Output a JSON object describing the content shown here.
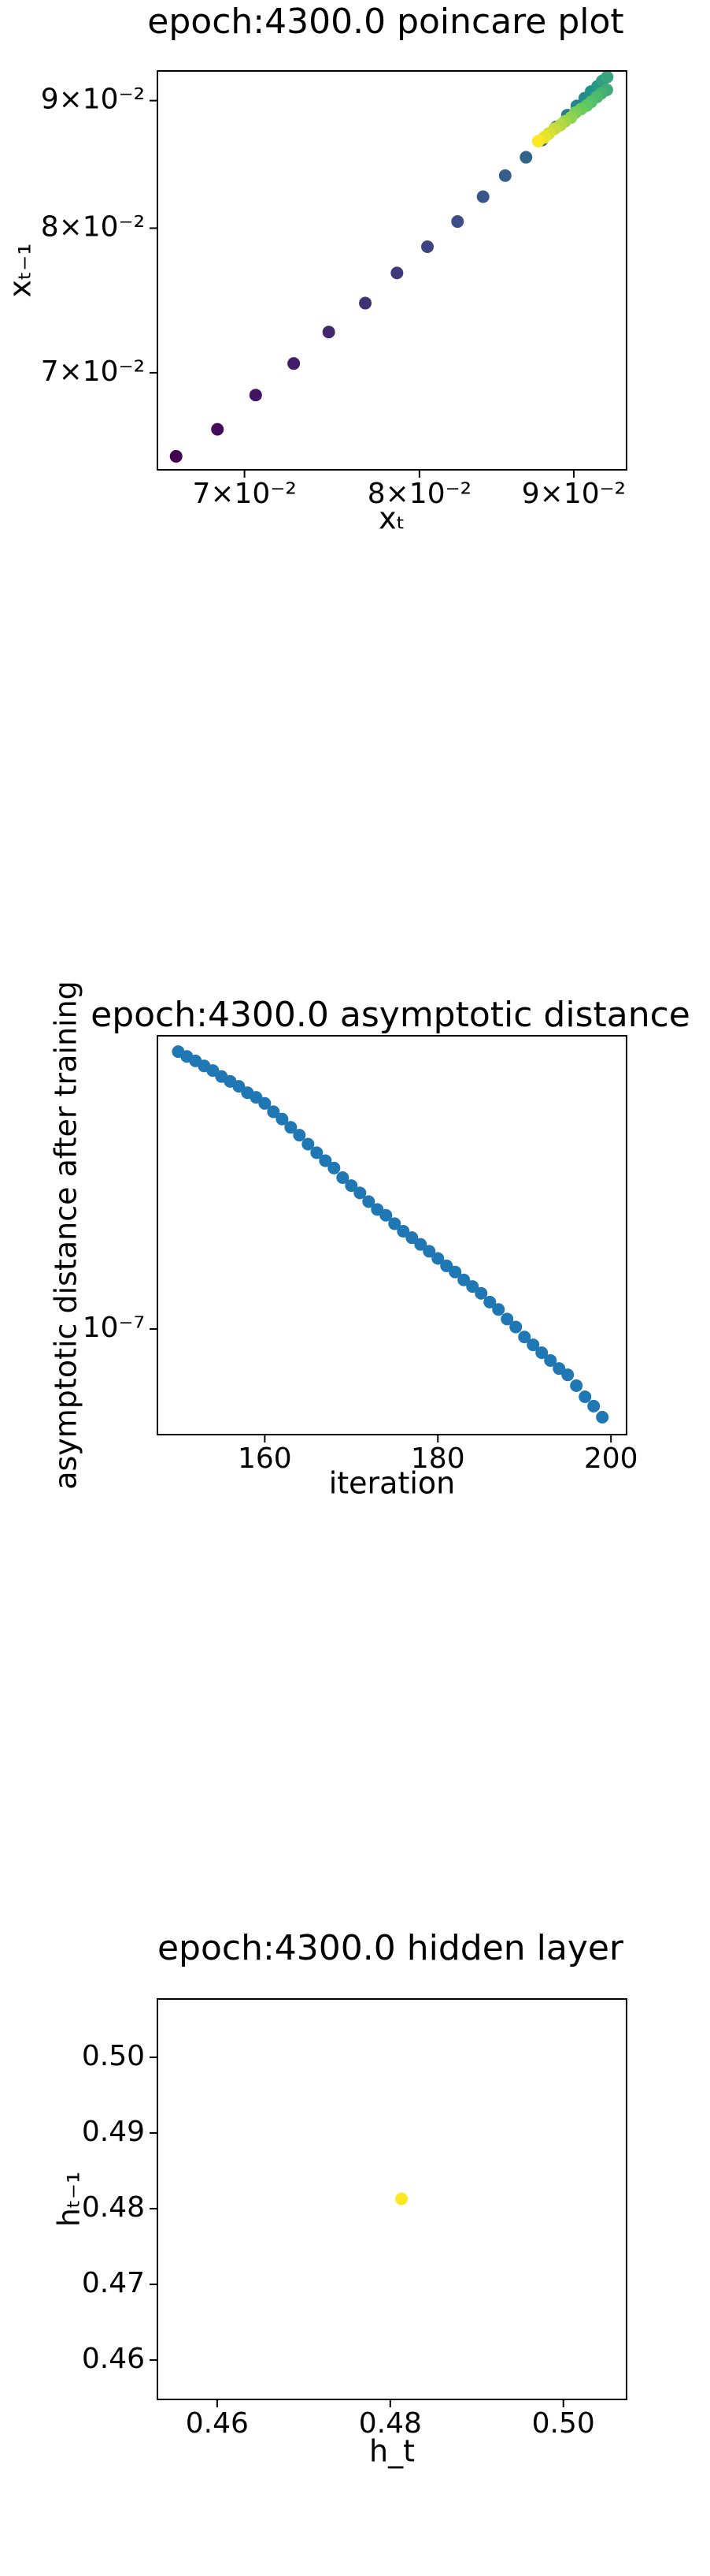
{
  "chart_data": [
    {
      "type": "scatter",
      "title": "epoch:4300.0 poincare plot",
      "x_label": "xₜ",
      "y_label": "xₜ₋₁",
      "xscale": "log",
      "yscale": "log",
      "xlim": [
        0.0655,
        0.0937
      ],
      "ylim": [
        0.064,
        0.0925
      ],
      "xticks": [
        {
          "value": 0.07,
          "label": "7×10⁻²"
        },
        {
          "value": 0.08,
          "label": "8×10⁻²"
        },
        {
          "value": 0.09,
          "label": "9×10⁻²"
        }
      ],
      "yticks": [
        {
          "value": 0.07,
          "label": "7×10⁻²"
        },
        {
          "value": 0.08,
          "label": "8×10⁻²"
        },
        {
          "value": 0.09,
          "label": "9×10⁻²"
        }
      ],
      "colormap": [
        "#440154",
        "#3b528b",
        "#21918c",
        "#5ec962",
        "#fde725"
      ],
      "x": [
        0.06644,
        0.06857,
        0.0706,
        0.07268,
        0.07465,
        0.07676,
        0.07864,
        0.08049,
        0.08236,
        0.08398,
        0.08541,
        0.08678,
        0.08784,
        0.0888,
        0.08956,
        0.09021,
        0.09076,
        0.0912,
        0.09165,
        0.09198,
        0.09232,
        0.0923,
        0.0919,
        0.0916,
        0.0912,
        0.0909,
        0.0905,
        0.0901,
        0.0898,
        0.0894,
        0.0891,
        0.0887,
        0.0883,
        0.088,
        0.0876
      ],
      "y": [
        0.0648,
        0.06644,
        0.06857,
        0.0706,
        0.07268,
        0.07465,
        0.07676,
        0.07864,
        0.08049,
        0.08236,
        0.08398,
        0.08541,
        0.08678,
        0.08784,
        0.0888,
        0.08956,
        0.09021,
        0.09076,
        0.0912,
        0.09165,
        0.09198,
        0.0909,
        0.0906,
        0.0903,
        0.0899,
        0.0896,
        0.0893,
        0.089,
        0.0886,
        0.0883,
        0.088,
        0.0877,
        0.0873,
        0.087,
        0.0867
      ]
    },
    {
      "type": "scatter",
      "title": "epoch:4300.0 asymptotic distance",
      "x_label": "iteration",
      "y_label": "asymptotic distance after training",
      "xscale": "linear",
      "yscale": "log",
      "color": "#1f77b4",
      "xlim": [
        147.6,
        201.8
      ],
      "ylim": [
        5.98e-08,
        4.17e-07
      ],
      "xticks": [
        160,
        180,
        200
      ],
      "yticks": [
        {
          "value": 1e-07,
          "label": "10⁻⁷"
        }
      ],
      "x": [
        150,
        151,
        152,
        153,
        154,
        155,
        156,
        157,
        158,
        159,
        160,
        161,
        162,
        163,
        164,
        165,
        166,
        167,
        168,
        169,
        170,
        171,
        172,
        173,
        174,
        175,
        176,
        177,
        178,
        179,
        180,
        181,
        182,
        183,
        184,
        185,
        186,
        187,
        188,
        189,
        190,
        191,
        192,
        193,
        194,
        195,
        196,
        197,
        198,
        199
      ],
      "y": [
        3.86e-07,
        3.77e-07,
        3.69e-07,
        3.6e-07,
        3.52e-07,
        3.42e-07,
        3.34e-07,
        3.26e-07,
        3.16e-07,
        3.09e-07,
        3e-07,
        2.88e-07,
        2.78e-07,
        2.67e-07,
        2.57e-07,
        2.46e-07,
        2.36e-07,
        2.27e-07,
        2.19e-07,
        2.09e-07,
        2.01e-07,
        1.94e-07,
        1.86e-07,
        1.79e-07,
        1.74e-07,
        1.67e-07,
        1.61e-07,
        1.56e-07,
        1.51e-07,
        1.46e-07,
        1.41e-07,
        1.36e-07,
        1.32e-07,
        1.27e-07,
        1.23e-07,
        1.19e-07,
        1.14e-07,
        1.1e-07,
        1.05e-07,
        1.01e-07,
        9.62e-08,
        9.26e-08,
        8.91e-08,
        8.58e-08,
        8.25e-08,
        8e-08,
        7.59e-08,
        7.19e-08,
        6.87e-08,
        6.51e-08
      ]
    },
    {
      "type": "scatter",
      "title": "epoch:4300.0 hidden layer",
      "x_label": "h_t",
      "y_label": "hₜ₋₁",
      "xscale": "linear",
      "yscale": "linear",
      "color": "#fde725",
      "xlim": [
        0.4531,
        0.5073
      ],
      "ylim": [
        0.4548,
        0.5077
      ],
      "xticks": [
        0.46,
        0.48,
        {
          "value": 0.5,
          "label": "0.50"
        }
      ],
      "yticks": [
        0.46,
        0.47,
        0.48,
        0.49,
        {
          "value": 0.5,
          "label": "0.50"
        }
      ],
      "x": [
        0.4813
      ],
      "y": [
        0.4813
      ]
    }
  ]
}
